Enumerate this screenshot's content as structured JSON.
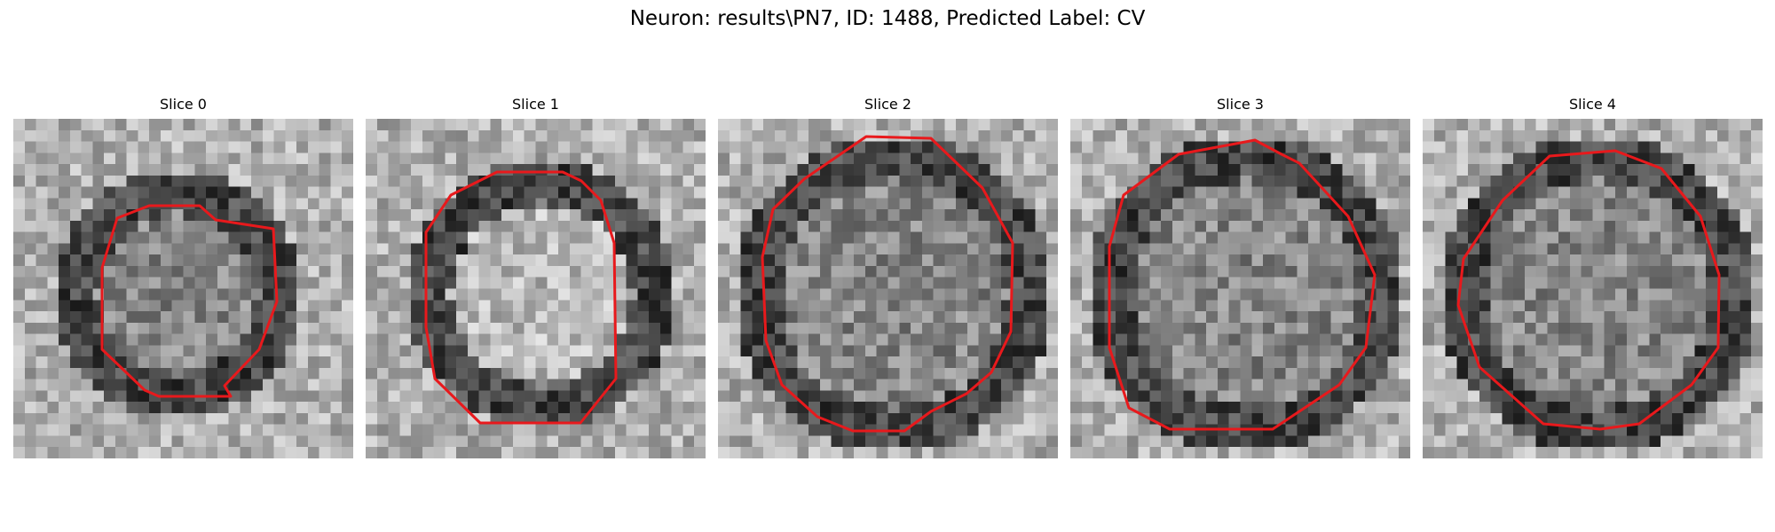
{
  "figure": {
    "title": "Neuron: results\\PN7, ID: 1488, Predicted Label: CV"
  },
  "colors": {
    "contour": "#e8191c",
    "background": "#ffffff"
  },
  "panels": [
    {
      "title": "Slice 0",
      "contour_color": "#e8191c"
    },
    {
      "title": "Slice 1",
      "contour_color": "#e8191c"
    },
    {
      "title": "Slice 2",
      "contour_color": "#e8191c"
    },
    {
      "title": "Slice 3",
      "contour_color": "#e8191c"
    },
    {
      "title": "Slice 4",
      "contour_color": "#e8191c"
    }
  ]
}
